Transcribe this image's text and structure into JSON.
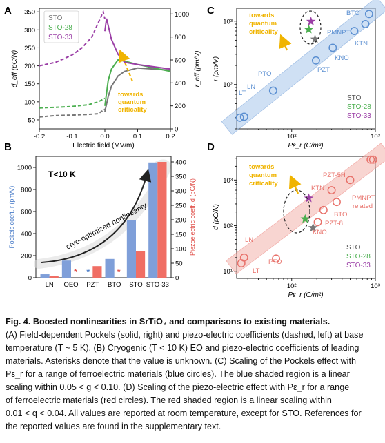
{
  "panels": {
    "A": {
      "letter": "A",
      "xlabel": "Electric field (MV/m)",
      "ylabel_left": "d_eff (pC/N)",
      "ylabel_right": "r_eff (pm/V)",
      "xticks": [
        "-0.2",
        "-0.1",
        "0.0",
        "0.1",
        "0.2"
      ],
      "yticks_left": [
        "50",
        "100",
        "150",
        "200",
        "250",
        "300",
        "350"
      ],
      "yticks_right": [
        "0",
        "200",
        "400",
        "600",
        "800",
        "1000"
      ],
      "legend": [
        "STO",
        "STO-28",
        "STO-33"
      ],
      "annotation": [
        "towards",
        "quantum",
        "criticality"
      ]
    },
    "B": {
      "letter": "B",
      "ylabel_left": "Pockels coeff. r (pm/V)",
      "ylabel_right": "Piezoelectric coeff. d (pC/N)",
      "label_T": "T<10 K",
      "arrow_label": "cryo-optimized nonlinearity",
      "yticks_left": [
        "0",
        "200",
        "400",
        "600",
        "800",
        "1000"
      ],
      "yticks_right": [
        "0",
        "50",
        "100",
        "150",
        "200",
        "250",
        "300",
        "350",
        "400"
      ],
      "star": "*"
    },
    "C": {
      "letter": "C",
      "xlabel": "Pε_r (C/m²)",
      "ylabel": "r (pm/V)",
      "xticks": [
        "10²",
        "10³"
      ],
      "yticks": [
        "10²",
        "10³"
      ],
      "labels": [
        "LT",
        "LN",
        "PTO",
        "PZT",
        "KNO",
        "PMNPT",
        "BTO",
        "KTN"
      ],
      "legend": [
        "STO",
        "STO-28",
        "STO-33"
      ],
      "annotation": [
        "towards",
        "quantum",
        "criticality"
      ]
    },
    "D": {
      "letter": "D",
      "xlabel": "Pε_r (C/m²)",
      "ylabel": "d (pC/N)",
      "xticks": [
        "10²",
        "10³"
      ],
      "yticks": [
        "10¹",
        "10²",
        "10³"
      ],
      "labels": [
        "LN",
        "LT",
        "PTO",
        "PZT-5H",
        "KTN",
        "BTO",
        "PZT-8",
        "KNO",
        "PMNPT",
        "related"
      ],
      "legend": [
        "STO",
        "STO-28",
        "STO-33"
      ],
      "annotation": [
        "towards",
        "quantum",
        "criticality"
      ]
    }
  },
  "chart_data": [
    {
      "panel": "A",
      "type": "line",
      "xlabel": "Electric field (MV/m)",
      "xlim": [
        -0.2,
        0.2
      ],
      "ylim_left": [
        25,
        360
      ],
      "ylim_right": [
        0,
        1050
      ],
      "series": [
        {
          "name": "STO",
          "axis": "right",
          "style": "solid",
          "x": [
            0.0,
            0.01,
            0.02,
            0.04,
            0.06,
            0.1,
            0.15,
            0.2
          ],
          "y": [
            150,
            280,
            370,
            460,
            500,
            530,
            520,
            510
          ]
        },
        {
          "name": "STO-28",
          "axis": "right",
          "style": "solid",
          "x": [
            0.0,
            0.01,
            0.02,
            0.04,
            0.06,
            0.1,
            0.15,
            0.2
          ],
          "y": [
            200,
            420,
            520,
            600,
            590,
            560,
            530,
            500
          ]
        },
        {
          "name": "STO-33",
          "axis": "right",
          "style": "solid",
          "x": [
            0.0,
            0.005,
            0.01,
            0.02,
            0.04,
            0.06,
            0.1,
            0.15,
            0.2
          ],
          "y": [
            850,
            960,
            900,
            780,
            650,
            580,
            560,
            540,
            520
          ]
        },
        {
          "name": "STO",
          "axis": "left",
          "style": "dashed",
          "x": [
            -0.2,
            -0.15,
            -0.1,
            -0.05,
            -0.02,
            0.0
          ],
          "y": [
            58,
            62,
            63,
            65,
            67,
            80
          ]
        },
        {
          "name": "STO-28",
          "axis": "left",
          "style": "dashed",
          "x": [
            -0.2,
            -0.15,
            -0.1,
            -0.05,
            -0.02,
            0.0
          ],
          "y": [
            83,
            85,
            87,
            92,
            100,
            110
          ]
        },
        {
          "name": "STO-33",
          "axis": "left",
          "style": "dashed",
          "x": [
            -0.2,
            -0.15,
            -0.1,
            -0.07,
            -0.04,
            -0.02,
            -0.005,
            0.0
          ],
          "y": [
            200,
            210,
            230,
            250,
            280,
            320,
            350,
            330
          ]
        }
      ]
    },
    {
      "panel": "B",
      "type": "bar",
      "categories": [
        "LN",
        "OEO",
        "PZT",
        "BTO",
        "STO",
        "STO-33"
      ],
      "series": [
        {
          "name": "Pockels coeff. r (pm/V)",
          "axis": "left",
          "color": "#7f9fd9",
          "values": [
            31,
            155,
            null,
            170,
            525,
            1045
          ]
        },
        {
          "name": "Piezoelectric coeff. d (pC/N)",
          "axis": "right",
          "color": "#f06e64",
          "values": [
            6,
            null,
            40,
            null,
            92,
            400
          ]
        }
      ],
      "unknown_marker": "*",
      "ylim_left": [
        0,
        1050
      ],
      "ylim_right": [
        0,
        400
      ]
    },
    {
      "panel": "C",
      "type": "scatter",
      "xlabel": "Pε_r (C/m²)",
      "ylabel": "r (pm/V)",
      "xscale": "log",
      "yscale": "log",
      "xlim": [
        22,
        1000
      ],
      "ylim": [
        20,
        1600
      ],
      "points": [
        {
          "label": "LT",
          "x": 24,
          "y": 30,
          "group": "ferroelectric"
        },
        {
          "label": "LN",
          "x": 27,
          "y": 31,
          "group": "ferroelectric"
        },
        {
          "label": "PTO",
          "x": 60,
          "y": 80,
          "group": "ferroelectric"
        },
        {
          "label": "PZT",
          "x": 195,
          "y": 240,
          "group": "ferroelectric"
        },
        {
          "label": "KNO",
          "x": 310,
          "y": 380,
          "group": "ferroelectric"
        },
        {
          "label": "PMNPT",
          "x": 560,
          "y": 700,
          "group": "ferroelectric"
        },
        {
          "label": "BTO",
          "x": 840,
          "y": 1300,
          "group": "ferroelectric"
        },
        {
          "label": "KTN",
          "x": 760,
          "y": 900,
          "group": "ferroelectric"
        },
        {
          "label": "STO",
          "x": 190,
          "y": 520,
          "group": "STO"
        },
        {
          "label": "STO-28",
          "x": 160,
          "y": 740,
          "group": "STO-28"
        },
        {
          "label": "STO-33",
          "x": 170,
          "y": 990,
          "group": "STO-33"
        }
      ]
    },
    {
      "panel": "D",
      "type": "scatter",
      "xlabel": "Pε_r (C/m²)",
      "ylabel": "d (pC/N)",
      "xscale": "log",
      "yscale": "log",
      "xlim": [
        22,
        1000
      ],
      "ylim": [
        7,
        3300
      ],
      "points": [
        {
          "label": "LN",
          "x": 27,
          "y": 20,
          "group": "ferroelectric"
        },
        {
          "label": "LT",
          "x": 25,
          "y": 15,
          "group": "ferroelectric"
        },
        {
          "label": "PTO",
          "x": 65,
          "y": 19,
          "group": "ferroelectric"
        },
        {
          "label": "PZT-5H",
          "x": 500,
          "y": 1000,
          "group": "ferroelectric"
        },
        {
          "label": "KTN",
          "x": 300,
          "y": 600,
          "group": "ferroelectric"
        },
        {
          "label": "BTO",
          "x": 345,
          "y": 330,
          "group": "ferroelectric"
        },
        {
          "label": "PZT-8",
          "x": 240,
          "y": 220,
          "group": "ferroelectric"
        },
        {
          "label": "KNO",
          "x": 205,
          "y": 120,
          "group": "ferroelectric"
        },
        {
          "label": "PMNPT",
          "x": 880,
          "y": 2800,
          "group": "ferroelectric"
        },
        {
          "label": "PMNPT",
          "x": 940,
          "y": 2800,
          "group": "ferroelectric"
        },
        {
          "label": "STO",
          "x": 180,
          "y": 90,
          "group": "STO"
        },
        {
          "label": "STO-28",
          "x": 145,
          "y": 140,
          "group": "STO-28"
        },
        {
          "label": "STO-33",
          "x": 160,
          "y": 400,
          "group": "STO-33"
        }
      ]
    }
  ],
  "colors": {
    "STO": "#777777",
    "STO-28": "#4caf50",
    "STO-33": "#9b3fa6",
    "annotation": "#f0b400",
    "blue_marker": "#5b8fd1",
    "blue_band": "#a9c7ec",
    "red_marker": "#e8716a",
    "red_band": "#f4b3ad",
    "bar_blue": "#7f9fd9",
    "bar_red": "#f06e64"
  },
  "caption": {
    "title": "Fig. 4. Boosted nonlinearities in SrTiO₃ and comparisons to existing materials.",
    "lines": [
      "(A) Field-dependent Pockels (solid, right) and piezo-electric coefficients (dashed, left) at base",
      "temperature (T ~ 5 K). (B) Cryogenic (T < 10 K) EO and piezo-electric coefficients of leading",
      "materials. Asterisks denote that the value is unknown. (C) Scaling of the Pockels effect with",
      "Pε_r for a range of ferroelectric materials (blue circles). The blue shaded region is a linear",
      "scaling within 0.05 < g < 0.10. (D) Scaling of the piezo-electric effect with Pε_r for a range",
      "of ferroelectric materials (red circles). The red shaded region is a linear scaling within",
      "0.01 < q < 0.04. All values are reported at room temperature, except for STO. References for",
      "the reported values are found in the supplementary text."
    ]
  }
}
